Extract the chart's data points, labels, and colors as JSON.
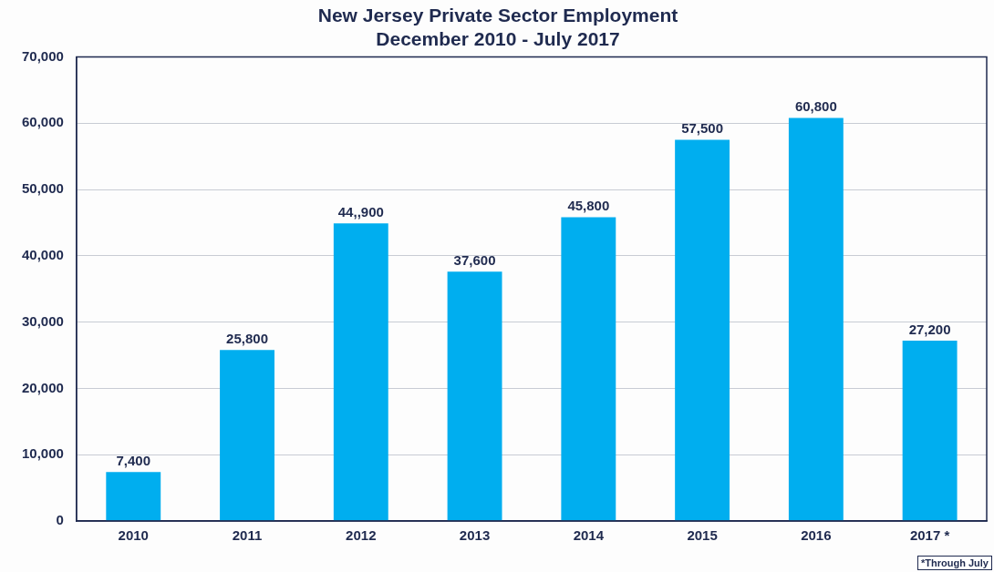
{
  "chart_data": {
    "type": "bar",
    "title": "New Jersey Private Sector Employment",
    "subtitle": "December 2010 - July 2017",
    "categories": [
      "2010",
      "2011",
      "2012",
      "2013",
      "2014",
      "2015",
      "2016",
      "2017 *"
    ],
    "values": [
      7400,
      25800,
      44900,
      37600,
      45800,
      57500,
      60800,
      27200
    ],
    "value_labels": [
      "7,400",
      "25,800",
      "44,,900",
      "37,600",
      "45,800",
      "57,500",
      "60,800",
      "27,200"
    ],
    "color": "#00aeef",
    "ylim": [
      0,
      70000
    ],
    "yticks": [
      {
        "value": 0,
        "label": "0"
      },
      {
        "value": 10000,
        "label": "10,000"
      },
      {
        "value": 20000,
        "label": "20,000"
      },
      {
        "value": 30000,
        "label": "30,000"
      },
      {
        "value": 40000,
        "label": "40,000"
      },
      {
        "value": 50000,
        "label": "50,000"
      },
      {
        "value": 60000,
        "label": "60,000"
      },
      {
        "value": 70000,
        "label": "70,000"
      }
    ],
    "grid": "y",
    "legend": false,
    "annotations": [
      "*Through July"
    ]
  }
}
